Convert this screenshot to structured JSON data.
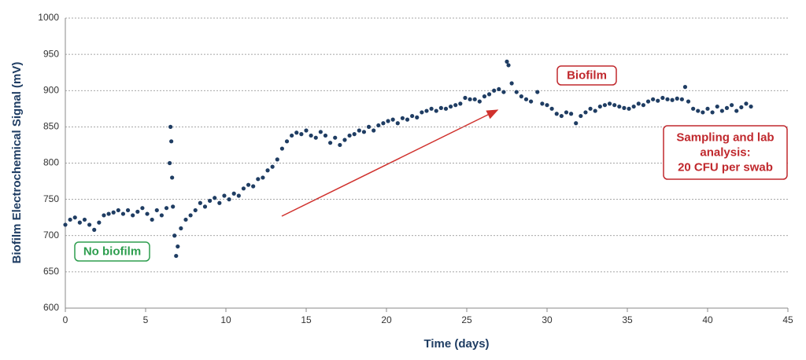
{
  "chart_data": {
    "type": "scatter",
    "x_label": "Time (days)",
    "y_label": "Biofilm Electrochemical Signal (mV)",
    "xlim": [
      0,
      45
    ],
    "xticks": [
      0,
      5,
      10,
      15,
      20,
      25,
      30,
      35,
      40,
      45
    ],
    "ylim": [
      600,
      1000
    ],
    "yticks": [
      600,
      650,
      700,
      750,
      800,
      850,
      900,
      950,
      1000
    ],
    "grid": true,
    "color": "#1f3d63",
    "x": [
      0,
      0.3,
      0.6,
      0.9,
      1.2,
      1.5,
      1.8,
      2.1,
      2.4,
      2.7,
      3.0,
      3.3,
      3.6,
      3.9,
      4.2,
      4.5,
      4.8,
      5.1,
      5.4,
      5.7,
      6.0,
      6.3,
      6.5,
      6.55,
      6.6,
      6.65,
      6.7,
      6.8,
      6.9,
      7.0,
      7.2,
      7.5,
      7.8,
      8.1,
      8.4,
      8.7,
      9.0,
      9.3,
      9.6,
      9.9,
      10.2,
      10.5,
      10.8,
      11.1,
      11.4,
      11.7,
      12.0,
      12.3,
      12.6,
      12.9,
      13.2,
      13.5,
      13.8,
      14.1,
      14.4,
      14.7,
      15.0,
      15.3,
      15.6,
      15.9,
      16.2,
      16.5,
      16.8,
      17.1,
      17.4,
      17.7,
      18.0,
      18.3,
      18.6,
      18.9,
      19.2,
      19.5,
      19.8,
      20.1,
      20.4,
      20.7,
      21.0,
      21.3,
      21.6,
      21.9,
      22.2,
      22.5,
      22.8,
      23.1,
      23.4,
      23.7,
      24.0,
      24.3,
      24.6,
      24.9,
      25.2,
      25.5,
      25.8,
      26.1,
      26.4,
      26.7,
      27.0,
      27.3,
      27.5,
      27.6,
      27.8,
      28.1,
      28.4,
      28.7,
      29.0,
      29.4,
      29.7,
      30.0,
      30.3,
      30.6,
      30.9,
      31.2,
      31.5,
      31.8,
      32.1,
      32.4,
      32.7,
      33.0,
      33.3,
      33.6,
      33.9,
      34.2,
      34.5,
      34.8,
      35.1,
      35.4,
      35.7,
      36.0,
      36.3,
      36.6,
      36.9,
      37.2,
      37.5,
      37.8,
      38.1,
      38.4,
      38.6,
      38.8,
      39.1,
      39.4,
      39.7,
      40.0,
      40.3,
      40.6,
      40.9,
      41.2,
      41.5,
      41.8,
      42.1,
      42.4,
      42.7
    ],
    "values": [
      715,
      722,
      725,
      718,
      722,
      715,
      708,
      718,
      728,
      730,
      732,
      735,
      730,
      735,
      728,
      733,
      738,
      730,
      722,
      735,
      728,
      738,
      800,
      850,
      830,
      780,
      740,
      700,
      672,
      685,
      710,
      722,
      728,
      735,
      745,
      740,
      748,
      752,
      745,
      755,
      750,
      758,
      755,
      765,
      770,
      768,
      778,
      780,
      790,
      795,
      805,
      820,
      830,
      838,
      842,
      840,
      845,
      838,
      835,
      843,
      838,
      828,
      835,
      825,
      832,
      838,
      840,
      845,
      843,
      850,
      845,
      852,
      855,
      858,
      860,
      855,
      862,
      860,
      865,
      863,
      870,
      872,
      875,
      872,
      876,
      875,
      878,
      880,
      882,
      890,
      888,
      888,
      885,
      892,
      895,
      900,
      902,
      898,
      940,
      935,
      910,
      898,
      892,
      888,
      885,
      898,
      882,
      880,
      875,
      868,
      865,
      870,
      868,
      855,
      865,
      870,
      875,
      872,
      878,
      880,
      882,
      880,
      878,
      876,
      875,
      878,
      882,
      880,
      885,
      888,
      886,
      890,
      888,
      887,
      889,
      888,
      905,
      885,
      875,
      872,
      870,
      875,
      870,
      878,
      872,
      876,
      880,
      872,
      877,
      882,
      878
    ],
    "annotations": [
      {
        "lines": [
          "No biofilm"
        ],
        "color": "#2e9e4f"
      },
      {
        "lines": [
          "Biofilm"
        ],
        "color": "#c0282d"
      },
      {
        "lines": [
          "Sampling and lab",
          "analysis:",
          "20 CFU per swab"
        ],
        "color": "#c0282d"
      }
    ]
  }
}
